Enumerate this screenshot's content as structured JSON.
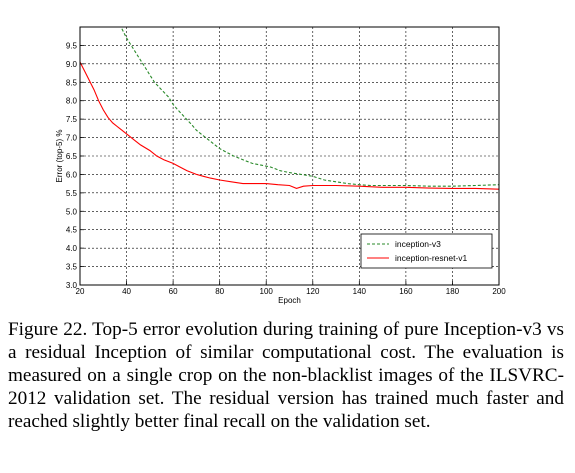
{
  "chart_data": {
    "type": "line",
    "xlabel": "Epoch",
    "ylabel": "Error (top-5) %",
    "xlim": [
      20,
      200
    ],
    "ylim": [
      3.0,
      10.0
    ],
    "xticks": [
      20,
      40,
      60,
      80,
      100,
      120,
      140,
      160,
      180,
      200
    ],
    "yticks": [
      3.0,
      3.5,
      4.0,
      4.5,
      5.0,
      5.5,
      6.0,
      6.5,
      7.0,
      7.5,
      8.0,
      8.5,
      9.0,
      9.5
    ],
    "grid": true,
    "legend_position": "lower-right",
    "series": [
      {
        "name": "inception-v3",
        "color": "#2a8a2a",
        "style": "dashed",
        "x": [
          38,
          40,
          42,
          45,
          48,
          50,
          52,
          55,
          58,
          60,
          62,
          65,
          68,
          70,
          72,
          75,
          78,
          80,
          83,
          86,
          90,
          94,
          98,
          102,
          106,
          110,
          115,
          120,
          125,
          130,
          135,
          140,
          145,
          150,
          160,
          170,
          180,
          190,
          200
        ],
        "y": [
          9.95,
          9.7,
          9.5,
          9.2,
          8.9,
          8.7,
          8.5,
          8.3,
          8.1,
          7.9,
          7.75,
          7.55,
          7.35,
          7.2,
          7.1,
          6.95,
          6.8,
          6.7,
          6.6,
          6.5,
          6.4,
          6.3,
          6.25,
          6.2,
          6.1,
          6.05,
          6.0,
          5.95,
          5.85,
          5.8,
          5.75,
          5.72,
          5.7,
          5.7,
          5.7,
          5.68,
          5.68,
          5.7,
          5.72
        ]
      },
      {
        "name": "inception-resnet-v1",
        "color": "#ff0000",
        "style": "solid",
        "x": [
          20,
          22,
          24,
          26,
          28,
          30,
          32,
          34,
          36,
          38,
          40,
          43,
          46,
          50,
          53,
          56,
          60,
          63,
          66,
          70,
          73,
          76,
          80,
          85,
          90,
          95,
          100,
          105,
          110,
          113,
          116,
          120,
          130,
          140,
          150,
          160,
          170,
          180,
          190,
          200
        ],
        "y": [
          9.05,
          8.8,
          8.55,
          8.3,
          8.0,
          7.75,
          7.55,
          7.4,
          7.3,
          7.2,
          7.1,
          6.95,
          6.8,
          6.65,
          6.5,
          6.4,
          6.3,
          6.2,
          6.1,
          6.0,
          5.95,
          5.9,
          5.85,
          5.8,
          5.75,
          5.75,
          5.75,
          5.72,
          5.7,
          5.62,
          5.68,
          5.7,
          5.7,
          5.68,
          5.65,
          5.65,
          5.63,
          5.62,
          5.62,
          5.6
        ]
      }
    ]
  },
  "caption": "Figure 22. Top-5 error evolution during training of pure Inception-v3 vs a residual Inception of similar computational cost. The evaluation is measured on a single crop on the non-blacklist images of the ILSVRC-2012 validation set. The residual version has trained much faster and reached slightly better final recall on the validation set."
}
